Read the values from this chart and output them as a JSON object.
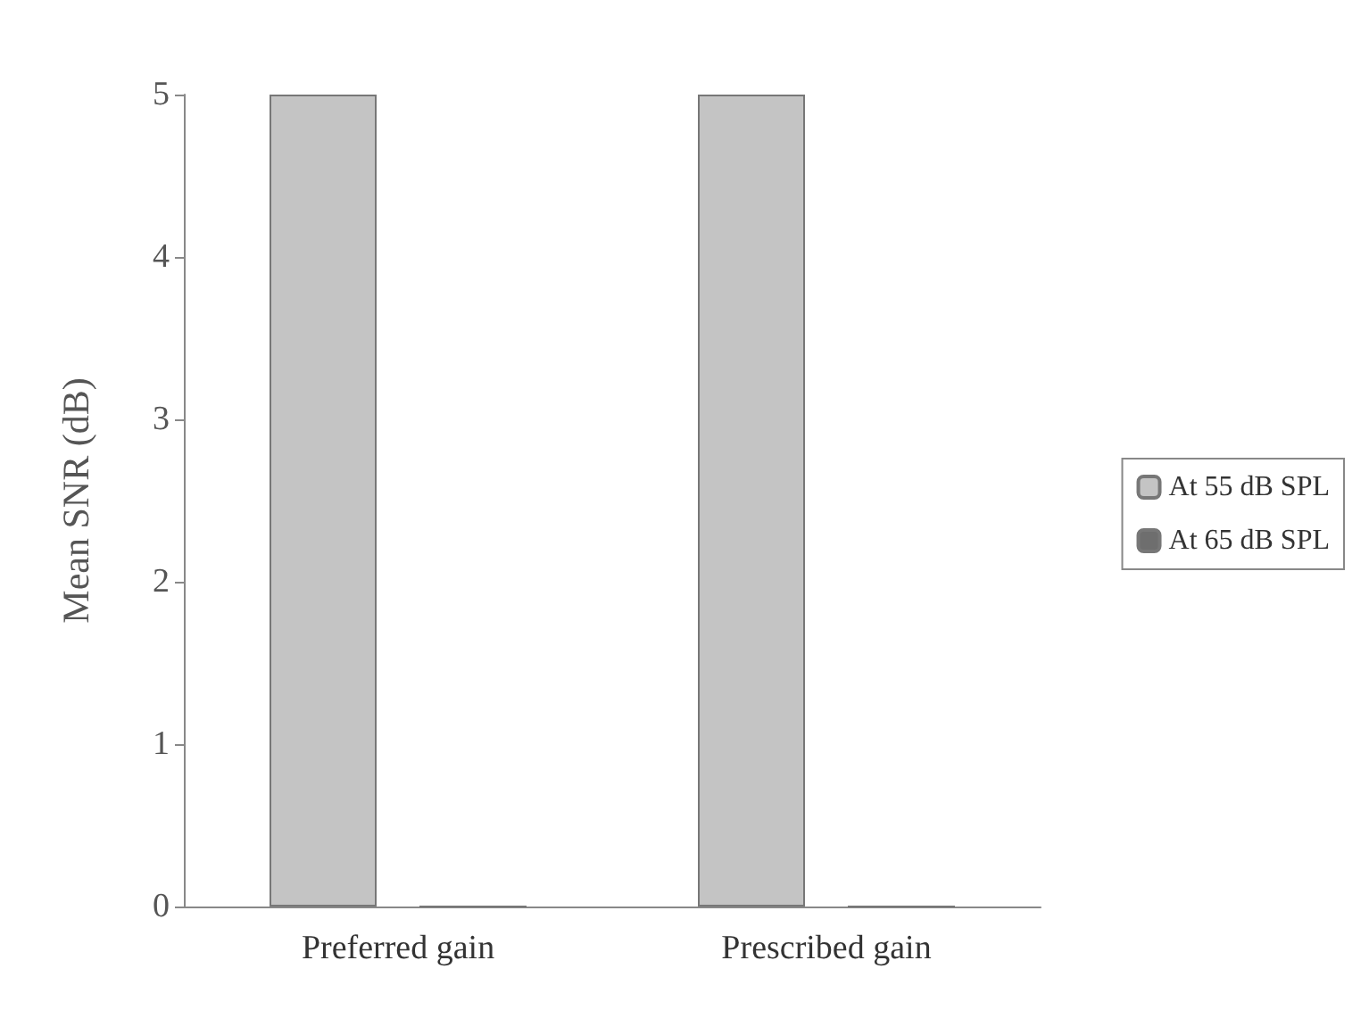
{
  "chart_data": {
    "type": "bar",
    "ylabel": "Mean SNR (dB)",
    "categories": [
      "Preferred gain",
      "Prescribed gain"
    ],
    "series": [
      {
        "name": "At 55 dB SPL",
        "color": "#c4c4c4",
        "values": [
          5,
          5
        ]
      },
      {
        "name": "At 65 dB SPL",
        "color": "#6e6e6e",
        "values": [
          0,
          0
        ]
      }
    ],
    "ylim": [
      0,
      5
    ],
    "yticks": [
      0,
      1,
      2,
      3,
      4,
      5
    ],
    "grid": false,
    "legend": "right"
  }
}
